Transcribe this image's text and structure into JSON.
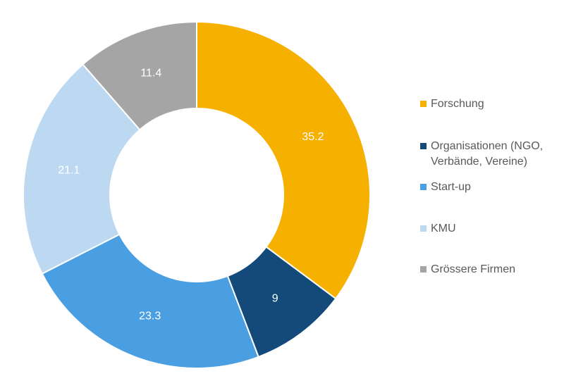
{
  "chart_data": {
    "type": "pie",
    "donut": true,
    "categories": [
      "Forschung",
      "Organisationen (NGO, Verbände, Vereine)",
      "Start-up",
      "KMU",
      "Grössere Firmen"
    ],
    "values": [
      35.2,
      9,
      23.3,
      21.1,
      11.4
    ],
    "labels": [
      "35.2",
      "9",
      "23.3",
      "21.1",
      "11.4"
    ],
    "colors": [
      "#F5B000",
      "#134A7A",
      "#4A9FE3",
      "#BDD9F1",
      "#A5A5A5"
    ],
    "label_color": "#FFFFFF",
    "legend_position": "right",
    "legend": [
      {
        "label": "Forschung",
        "color": "#F5B000"
      },
      {
        "label": "Organisationen (NGO, Verbände, Vereine)",
        "color": "#134A7A"
      },
      {
        "label": "Start-up",
        "color": "#4A9FE3"
      },
      {
        "label": "KMU",
        "color": "#BDD9F1"
      },
      {
        "label": "Grössere Firmen",
        "color": "#A5A5A5"
      }
    ]
  }
}
